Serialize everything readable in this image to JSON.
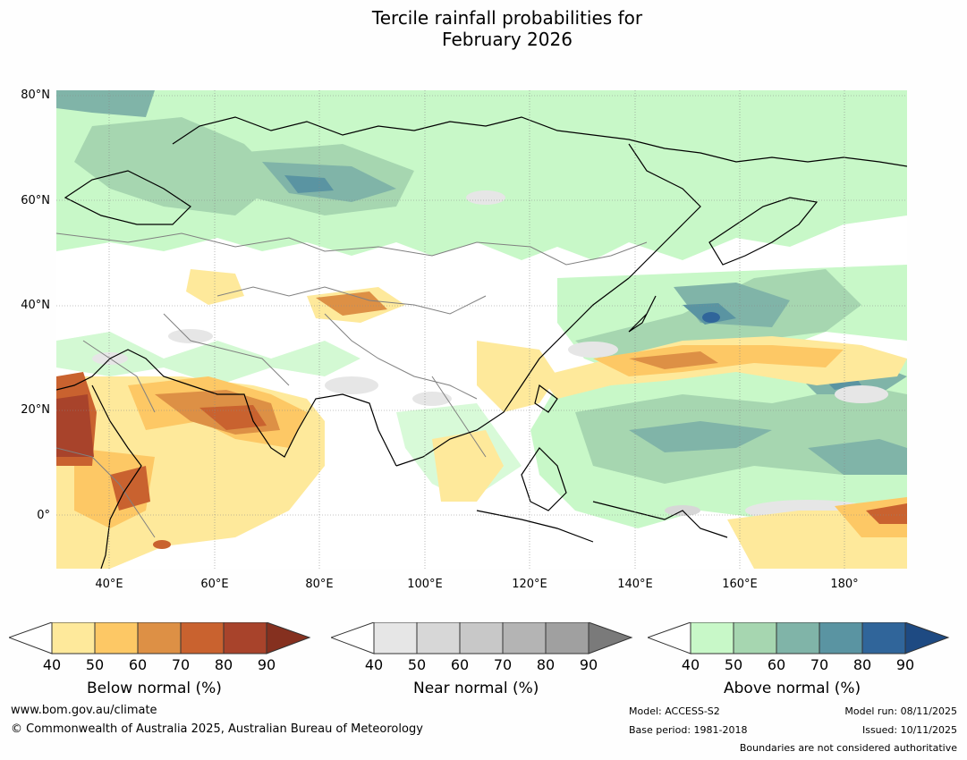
{
  "title_line1": "Tercile rainfall probabilities for",
  "title_line2": "February 2026",
  "y_axis_labels": [
    "80°N",
    "60°N",
    "40°N",
    "20°N",
    "0°"
  ],
  "x_axis_labels": [
    "40°E",
    "60°E",
    "80°E",
    "100°E",
    "120°E",
    "140°E",
    "160°E",
    "180°"
  ],
  "colorbars": [
    {
      "title": "Below normal (%)",
      "ticks": [
        "40",
        "50",
        "60",
        "70",
        "80",
        "90"
      ],
      "colors": [
        "#fee99b",
        "#fdc865",
        "#dd9045",
        "#c9622f",
        "#a8432b",
        "#85301f"
      ]
    },
    {
      "title": "Near normal (%)",
      "ticks": [
        "40",
        "50",
        "60",
        "70",
        "80",
        "90"
      ],
      "colors": [
        "#e6e6e6",
        "#d7d7d7",
        "#c8c8c8",
        "#b4b4b4",
        "#a0a0a0",
        "#7a7a7a"
      ]
    },
    {
      "title": "Above normal (%)",
      "ticks": [
        "40",
        "50",
        "60",
        "70",
        "80",
        "90"
      ],
      "colors": [
        "#c8f8c8",
        "#a6d6b0",
        "#80b4a8",
        "#5a94a2",
        "#30659a",
        "#1e4a82"
      ]
    }
  ],
  "footer": {
    "website": "www.bom.gov.au/climate",
    "copyright": "© Commonwealth of Australia 2025, Australian Bureau of Meteorology",
    "model": "Model: ACCESS-S2",
    "base_period": "Base period: 1981-2018",
    "model_run": "Model run: 08/11/2025",
    "issued": "Issued: 10/11/2025",
    "disclaimer": "Boundaries are not considered authoritative"
  },
  "colors": {
    "land_border": "#808080",
    "coastline": "#000000",
    "gridline": "#888888"
  }
}
